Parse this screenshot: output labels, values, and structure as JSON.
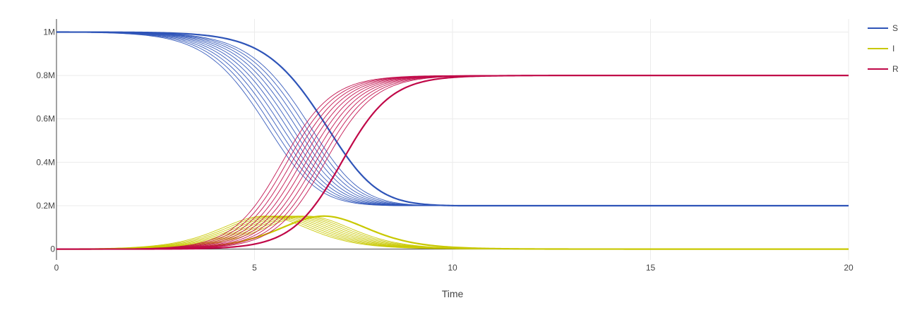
{
  "chart_data": {
    "type": "line",
    "title": "",
    "xlabel": "Time",
    "ylabel": "",
    "xlim": [
      0,
      20
    ],
    "ylim": [
      -50000,
      1060000
    ],
    "x_ticks": [
      0,
      5,
      10,
      15,
      20
    ],
    "x_tick_labels": [
      "0",
      "5",
      "10",
      "15",
      "20"
    ],
    "y_ticks": [
      0,
      200000,
      400000,
      600000,
      800000,
      1000000
    ],
    "y_tick_labels": [
      "0",
      "0.2M",
      "0.4M",
      "0.6M",
      "0.8M",
      "1M"
    ],
    "grid": true,
    "legend": {
      "position": "top-right",
      "entries": [
        {
          "name": "S",
          "color": "#2e54b8"
        },
        {
          "name": "I",
          "color": "#c8c800"
        },
        {
          "name": "R",
          "color": "#c00848"
        }
      ]
    },
    "model": {
      "population": 1000000,
      "final_recovered": 800000,
      "peak_infected": 152000,
      "outbreak_midpoint_times": [
        5.7,
        5.82,
        5.94,
        6.06,
        6.18,
        6.3,
        6.42,
        6.54,
        6.66,
        6.78,
        7.2
      ]
    },
    "series": [
      {
        "name": "S",
        "color": "#2e54b8",
        "x": [
          0,
          2,
          3,
          4,
          4.5,
          5,
          5.5,
          6,
          6.5,
          7,
          7.5,
          8,
          8.5,
          9,
          10,
          12,
          15,
          20
        ],
        "values": [
          1000000,
          999700,
          998500,
          992000,
          981000,
          958000,
          910000,
          829000,
          715000,
          582000,
          455000,
          356000,
          289000,
          248000,
          214000,
          203000,
          202000,
          202000
        ]
      },
      {
        "name": "I",
        "color": "#c8c800",
        "x": [
          0,
          2,
          3,
          4,
          4.5,
          5,
          5.5,
          6,
          6.5,
          7,
          7.5,
          8,
          8.5,
          9,
          10,
          12,
          15,
          20
        ],
        "values": [
          0,
          200,
          1000,
          5800,
          13500,
          32000,
          66000,
          110000,
          146000,
          152000,
          124000,
          83000,
          48000,
          26000,
          7000,
          400,
          0,
          0
        ]
      },
      {
        "name": "R",
        "color": "#c00848",
        "x": [
          0,
          2,
          3,
          4,
          4.5,
          5,
          5.5,
          6,
          6.5,
          7,
          7.5,
          8,
          8.5,
          9,
          10,
          12,
          15,
          20
        ],
        "values": [
          0,
          100,
          500,
          2200,
          5500,
          10000,
          24000,
          61000,
          139000,
          266000,
          421000,
          561000,
          663000,
          726000,
          779000,
          797000,
          798000,
          798000
        ]
      }
    ]
  }
}
